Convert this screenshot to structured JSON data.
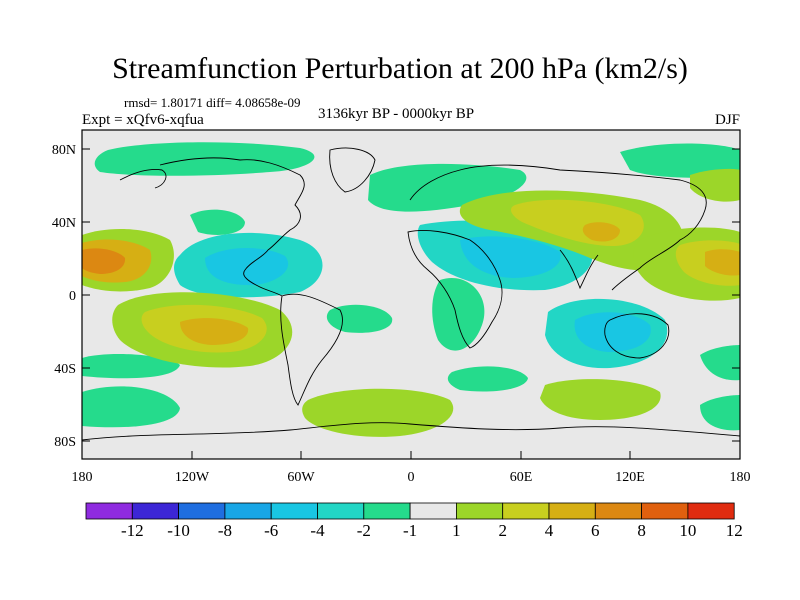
{
  "header": {
    "title": "Streamfunction Perturbation at 200 hPa (km2/s)",
    "stats": "rmsd= 1.80171 diff= 4.08658e-09",
    "experiment": "Expt = xQfv6-xqfua",
    "period": "3136kyr BP - 0000kyr BP",
    "season": "DJF"
  },
  "map": {
    "type": "filled-contour",
    "background_color": "#e8e8e8",
    "lon_range": [
      -180,
      180
    ],
    "lat_range": [
      -90,
      90
    ],
    "lat_ticks": [
      "80N",
      "40N",
      "0",
      "40S",
      "80S"
    ],
    "lon_ticks": [
      "180",
      "120W",
      "60W",
      "0",
      "60E",
      "120E",
      "180"
    ]
  },
  "colorbar": {
    "colors": [
      "#8f2be0",
      "#3c26d6",
      "#1f6ee0",
      "#18a6e6",
      "#19c6e3",
      "#22d6c5",
      "#25db8c",
      "#e8e8e8",
      "#9cd629",
      "#c8cf1f",
      "#d6af14",
      "#dc8812",
      "#e0600e",
      "#e02c10"
    ],
    "labels": [
      "-12",
      "-10",
      "-8",
      "-6",
      "-4",
      "-2",
      "-1",
      "1",
      "2",
      "4",
      "6",
      "8",
      "10",
      "12"
    ]
  },
  "features": [
    {
      "name": "blob-arctic-north",
      "level": "-1",
      "color": "#25db8c"
    },
    {
      "name": "blob-asia-jet",
      "level": "2",
      "color": "#9cd629"
    },
    {
      "name": "blob-asia-core",
      "level": "4",
      "color": "#c8cf1f"
    },
    {
      "name": "blob-dateline-high",
      "level": "8",
      "color": "#dc8812"
    },
    {
      "name": "blob-south-pacific",
      "level": "6",
      "color": "#d6af14"
    },
    {
      "name": "blob-central-america-low",
      "level": "-4",
      "color": "#19c6e3"
    },
    {
      "name": "blob-indian-ocean-low",
      "level": "-4",
      "color": "#19c6e3"
    },
    {
      "name": "blob-australia-low",
      "level": "-6",
      "color": "#18a6e6"
    }
  ]
}
